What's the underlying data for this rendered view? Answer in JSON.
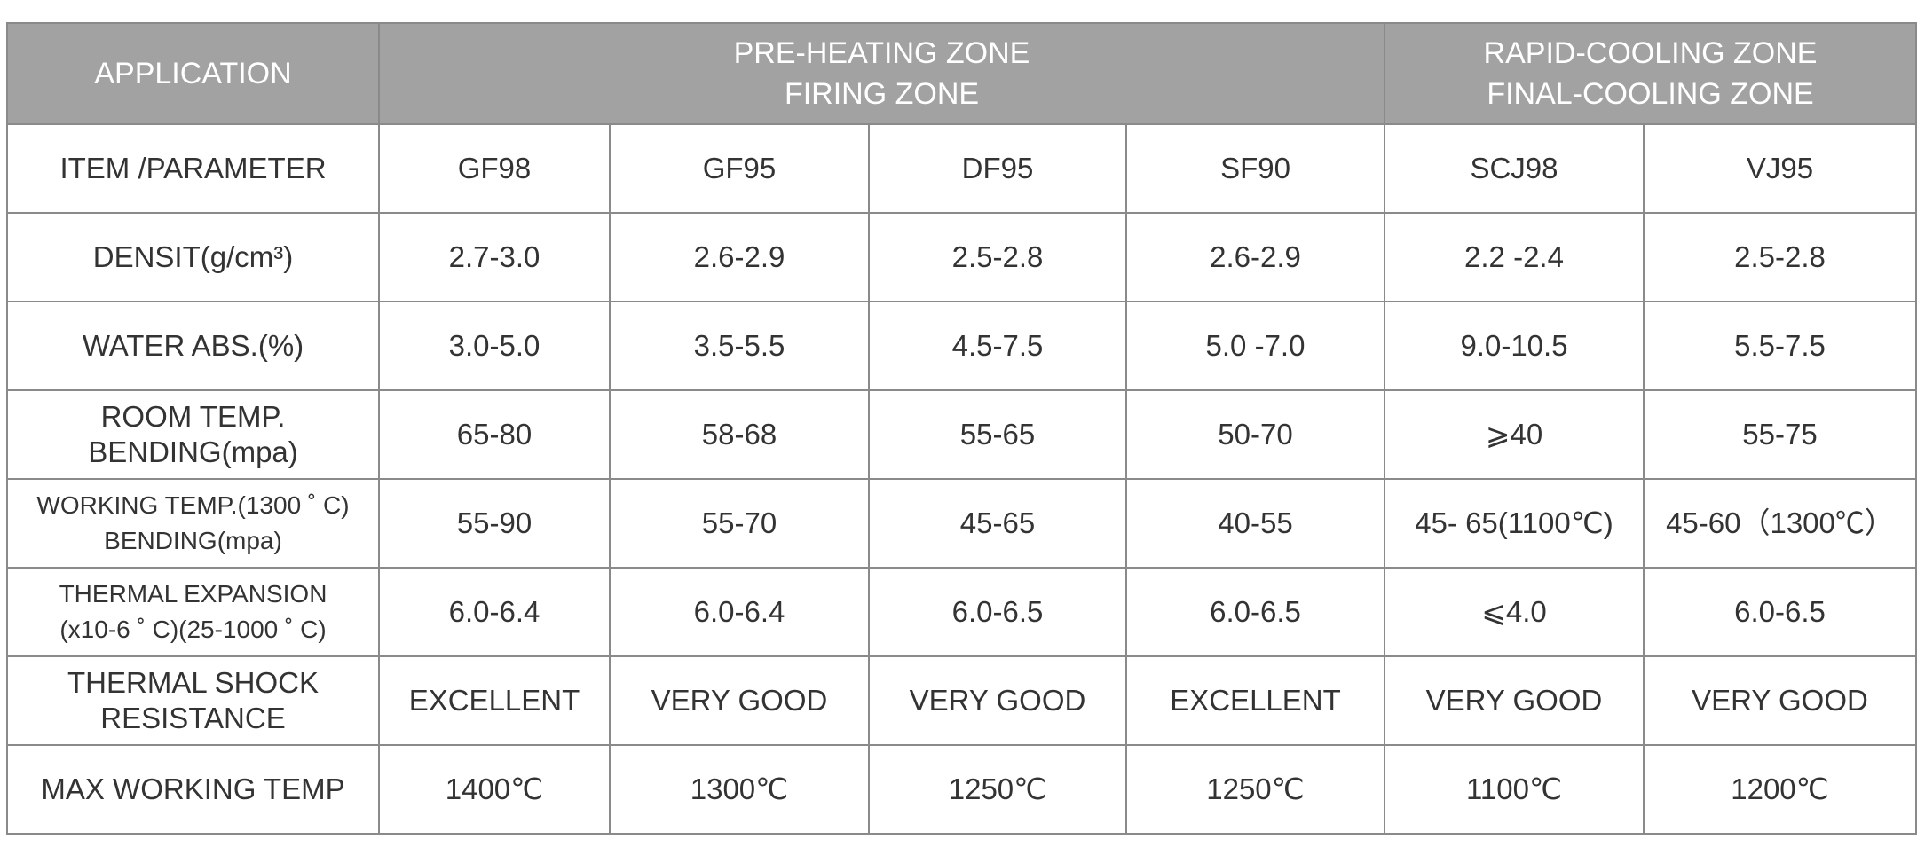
{
  "table": {
    "header": [
      {
        "lines": [
          "APPLICATION"
        ]
      },
      {
        "lines": [
          "PRE-HEATING ZONE",
          "FIRING ZONE"
        ]
      },
      {
        "lines": [
          "RAPID-COOLING ZONE",
          "FINAL-COOLING ZONE"
        ]
      }
    ],
    "rows": [
      {
        "label": [
          "ITEM /PARAMETER"
        ],
        "cells": [
          "GF98",
          "GF95",
          "DF95",
          "SF90",
          "SCJ98",
          "VJ95"
        ]
      },
      {
        "label": [
          "DENSIT(g/cm³)"
        ],
        "cells": [
          "2.7-3.0",
          "2.6-2.9",
          "2.5-2.8",
          "2.6-2.9",
          "2.2 -2.4",
          "2.5-2.8"
        ]
      },
      {
        "label": [
          "WATER ABS.(%)"
        ],
        "cells": [
          "3.0-5.0",
          "3.5-5.5",
          "4.5-7.5",
          "5.0 -7.0",
          "9.0-10.5",
          "5.5-7.5"
        ]
      },
      {
        "label": [
          "ROOM TEMP.",
          "BENDING(mpa)"
        ],
        "cells": [
          "65-80",
          "58-68",
          "55-65",
          "50-70",
          "⩾40",
          "55-75"
        ]
      },
      {
        "label": [
          "WORKING TEMP.(1300 ˚ C)",
          "BENDING(mpa)"
        ],
        "cells": [
          "55-90",
          "55-70",
          "45-65",
          "40-55",
          "45- 65(1100℃)",
          "45-60（1300℃）"
        ]
      },
      {
        "label": [
          "THERMAL EXPANSION",
          "(x10-6 ˚ C)(25-1000 ˚ C)"
        ],
        "cells": [
          "6.0-6.4",
          "6.0-6.4",
          "6.0-6.5",
          "6.0-6.5",
          "⩽4.0",
          "6.0-6.5"
        ]
      },
      {
        "label": [
          "THERMAL SHOCK",
          "RESISTANCE"
        ],
        "cells": [
          "EXCELLENT",
          "VERY GOOD",
          "VERY GOOD",
          "EXCELLENT",
          "VERY GOOD",
          "VERY GOOD"
        ]
      },
      {
        "label": [
          "MAX WORKING TEMP"
        ],
        "cells": [
          "1400℃",
          "1300℃",
          "1250℃",
          "1250℃",
          "1100℃",
          "1200℃"
        ]
      }
    ]
  }
}
